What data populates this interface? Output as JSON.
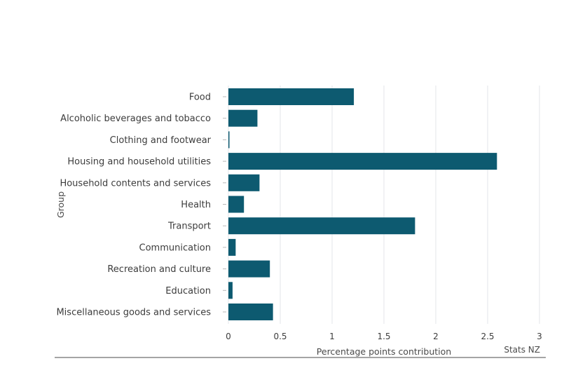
{
  "chart_data": {
    "type": "bar",
    "orientation": "horizontal",
    "categories": [
      "Food",
      "Alcoholic beverages and tobacco",
      "Clothing and footwear",
      "Housing and household utilities",
      "Household contents and services",
      "Health",
      "Transport",
      "Communication",
      "Recreation and culture",
      "Education",
      "Miscellaneous goods and services"
    ],
    "values": [
      1.21,
      0.28,
      0.01,
      2.59,
      0.3,
      0.15,
      1.8,
      0.07,
      0.4,
      0.04,
      0.43
    ],
    "xlabel": "Percentage points contribution",
    "ylabel": "Group",
    "xlim": [
      0,
      3
    ],
    "xticks": [
      "0",
      "0.5",
      "1",
      "1.5",
      "2",
      "2.5",
      "3"
    ],
    "grid": "vertical",
    "source": "Stats NZ",
    "colors": {
      "bar": "#0d5a70",
      "grid": "#e3e6e8",
      "footer_line": "#6f6f6f"
    }
  }
}
